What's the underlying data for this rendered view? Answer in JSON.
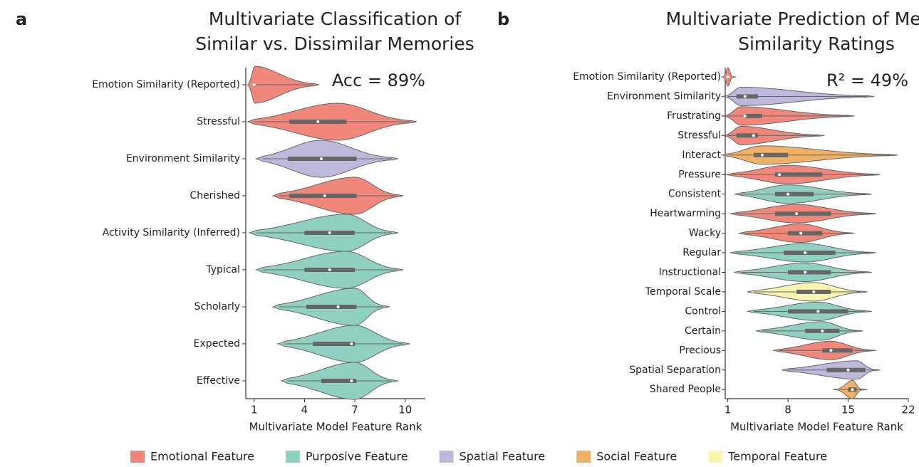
{
  "chart_data": [
    {
      "type": "violin",
      "panel_label": "a",
      "title": [
        "Multivariate Classification of",
        "Similar vs. Dissimilar Memories"
      ],
      "annotation": "Acc = 89%",
      "xlabel": "Multivariate Model Feature Rank",
      "xlim": [
        0.5,
        11.2
      ],
      "xticks": [
        1,
        4,
        7,
        10
      ],
      "categories": [
        "Emotion Similarity (Reported)",
        "Stressful",
        "Environment Similarity",
        "Cherished",
        "Activity Similarity (Inferred)",
        "Typical",
        "Scholarly",
        "Expected",
        "Effective"
      ],
      "colors": [
        "#f1877a",
        "#f1877a",
        "#bdb9da",
        "#f1877a",
        "#8fd0c0",
        "#8fd0c0",
        "#8fd0c0",
        "#8fd0c0",
        "#8fd0c0"
      ],
      "whisker_low": [
        1,
        1,
        1.5,
        2.5,
        1.1,
        1.5,
        2.5,
        2.8,
        3
      ],
      "q1": [
        1,
        3.1,
        3,
        3.1,
        4,
        4,
        4.1,
        4.5,
        5
      ],
      "median": [
        1,
        4.8,
        5,
        5.2,
        5.5,
        5.5,
        6,
        6.8,
        6.8
      ],
      "q3": [
        1,
        6.5,
        7.1,
        7.1,
        7,
        7,
        7.1,
        7,
        7.1
      ],
      "whisker_high": [
        4.5,
        10.3,
        9.2,
        9.5,
        9.2,
        9.5,
        8.7,
        9.9,
        9.2
      ],
      "mode": [
        1,
        6,
        5,
        7,
        6.5,
        6.5,
        7,
        7,
        7
      ]
    },
    {
      "type": "violin",
      "panel_label": "b",
      "title": [
        "Multivariate Prediction of Memory",
        "Similarity Ratings"
      ],
      "annotation": "R² = 49%",
      "xlabel": "Multivariate Model Feature Rank",
      "xlim": [
        0.7,
        22
      ],
      "xticks": [
        1,
        8,
        15,
        22
      ],
      "categories": [
        "Emotion Similarity (Reported)",
        "Environment Similarity",
        "Frustrating",
        "Stressful",
        "Interact",
        "Pressure",
        "Consistent",
        "Heartwarming",
        "Wacky",
        "Regular",
        "Instructional",
        "Temporal Scale",
        "Control",
        "Certain",
        "Precious",
        "Spatial Separation",
        "Shared People"
      ],
      "colors": [
        "#f1877a",
        "#bdb9da",
        "#f1877a",
        "#f1877a",
        "#efb168",
        "#f1877a",
        "#8fd0c0",
        "#f1877a",
        "#f1877a",
        "#8fd0c0",
        "#8fd0c0",
        "#f7f5b0",
        "#8fd0c0",
        "#8fd0c0",
        "#f1877a",
        "#bdb9da",
        "#efb168"
      ],
      "whisker_low": [
        1,
        1,
        1,
        1,
        1,
        1.5,
        2.5,
        2,
        3,
        2,
        2.5,
        4,
        4,
        5,
        7,
        8,
        14
      ],
      "q1": [
        1,
        2,
        3,
        2,
        4,
        6.5,
        6.5,
        6.5,
        8,
        7.5,
        8,
        9,
        8,
        10,
        12,
        12.5,
        15
      ],
      "median": [
        1,
        3,
        3,
        4,
        5,
        7,
        8,
        9,
        9.5,
        10,
        10,
        11,
        11.5,
        12,
        13,
        15,
        15.5
      ],
      "q3": [
        1,
        4.5,
        5,
        4.5,
        8,
        12,
        11,
        13,
        12,
        13.5,
        13,
        13,
        15,
        14,
        15.5,
        17,
        16
      ],
      "whisker_high": [
        1.2,
        17.3,
        15,
        11.5,
        20,
        18,
        17,
        17.5,
        15,
        17.5,
        17,
        16.5,
        17,
        16,
        17.5,
        18,
        16.5
      ],
      "mode": [
        1,
        2.5,
        2.5,
        2.5,
        5,
        8,
        8,
        9,
        9.5,
        10,
        10,
        11,
        11.5,
        12,
        13,
        16,
        15.5
      ]
    }
  ],
  "legend": [
    {
      "name": "Emotional Feature",
      "color": "#f1877a"
    },
    {
      "name": "Purposive Feature",
      "color": "#8fd0c0"
    },
    {
      "name": "Spatial Feature",
      "color": "#bdb9da"
    },
    {
      "name": "Social Feature",
      "color": "#efb168"
    },
    {
      "name": "Temporal Feature",
      "color": "#f7f5b0"
    }
  ]
}
